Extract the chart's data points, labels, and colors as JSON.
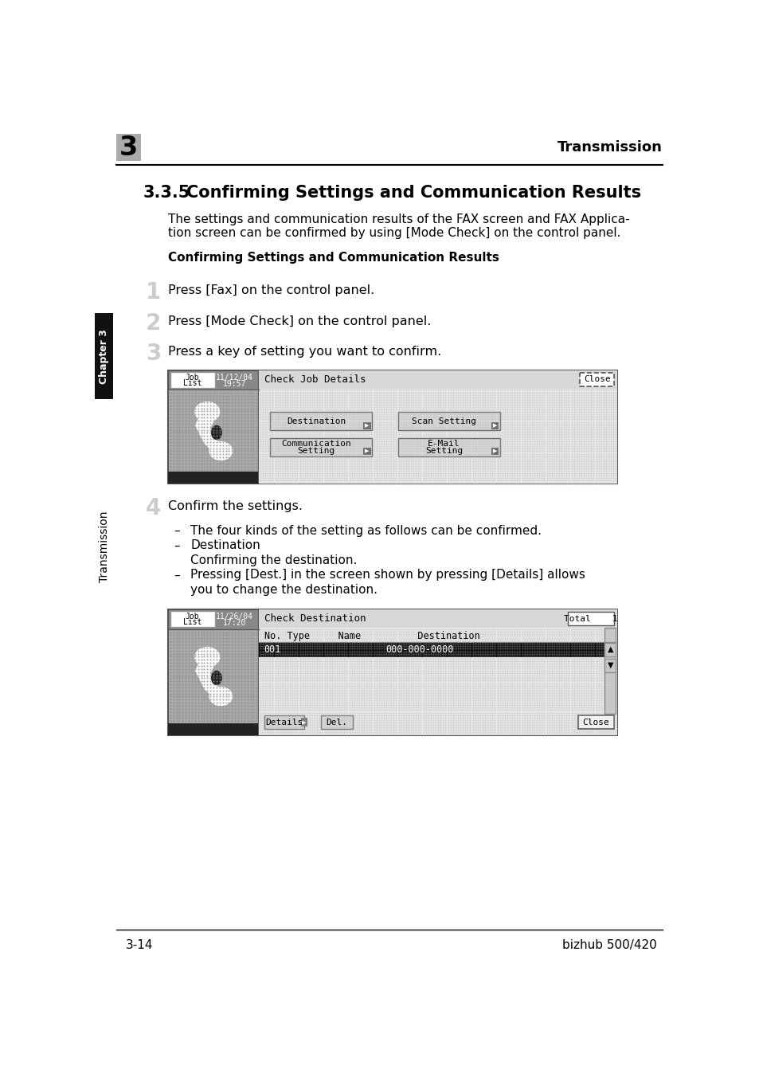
{
  "bg_color": "#ffffff",
  "header_chapter_num": "3",
  "header_chapter_bg": "#aaaaaa",
  "header_title": "Transmission",
  "footer_left": "3-14",
  "footer_right": "bizhub 500/420",
  "section_number": "3.3.5",
  "section_title": "Confirming Settings and Communication Results",
  "intro_line1": "The settings and communication results of the FAX screen and FAX Applica-",
  "intro_line2": "tion screen can be confirmed by using [Mode Check] on the control panel.",
  "subheading": "Confirming Settings and Communication Results",
  "steps": [
    {
      "num": "1",
      "text": "Press [Fax] on the control panel."
    },
    {
      "num": "2",
      "text": "Press [Mode Check] on the control panel."
    },
    {
      "num": "3",
      "text": "Press a key of setting you want to confirm."
    }
  ],
  "step4_text": "Confirm the settings.",
  "bullet1": "The four kinds of the setting as follows can be confirmed.",
  "bullet2": "Destination",
  "bullet2b": "Confirming the destination.",
  "bullet3a": "Pressing [Dest.] in the screen shown by pressing [Details] allows",
  "bullet3b": "you to change the destination.",
  "side_label": "Transmission",
  "side_chapter": "Chapter 3",
  "sidebar_color": "#111111",
  "ss1_date": "11/12/04",
  "ss1_time": "19:57",
  "ss2_date": "11/26/04",
  "ss2_time": "17:20"
}
